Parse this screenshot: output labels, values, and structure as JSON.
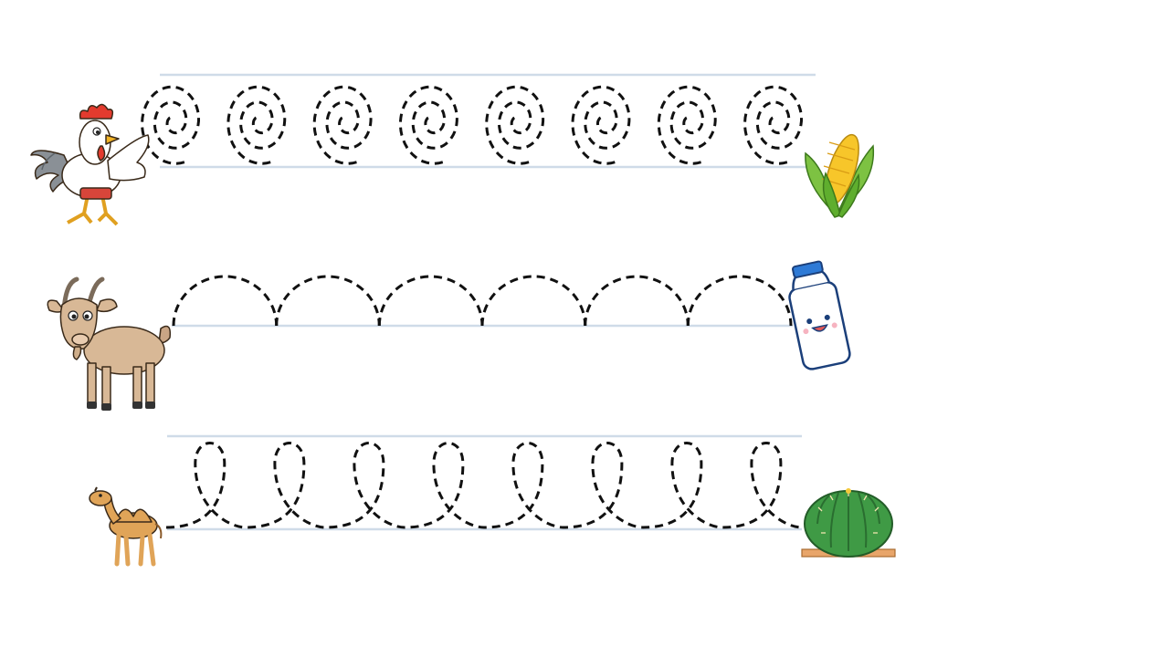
{
  "worksheet": {
    "rows": [
      {
        "start_picture": "rooster",
        "end_picture": "corn",
        "trace_pattern": "spirals",
        "repeat_count": 8
      },
      {
        "start_picture": "goat",
        "end_picture": "milk-bottle",
        "trace_pattern": "arches",
        "repeat_count": 6
      },
      {
        "start_picture": "camel",
        "end_picture": "cactus",
        "trace_pattern": "loops",
        "repeat_count": 8
      }
    ],
    "colors": {
      "dashed_line": "#111111",
      "guide_line": "#cfdbe8",
      "background": "#ffffff"
    }
  }
}
